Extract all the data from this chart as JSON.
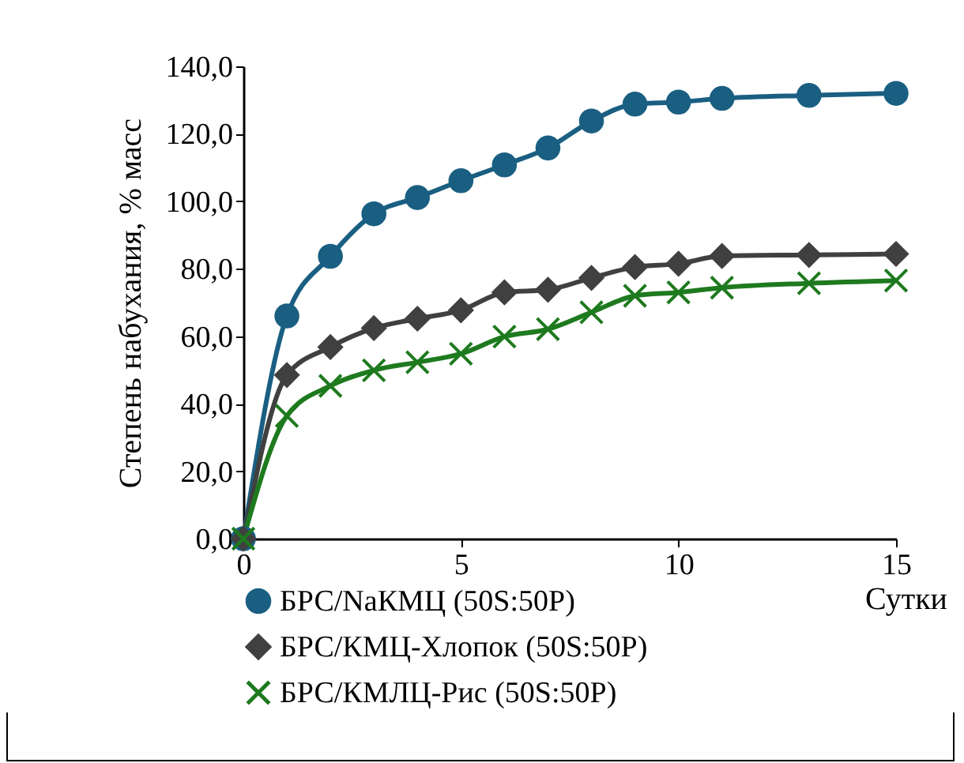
{
  "chart_data": {
    "type": "line",
    "xlabel": "Сутки",
    "ylabel": "Степень набухания, % масс",
    "x": [
      0,
      1,
      2,
      3,
      4,
      5,
      6,
      7,
      8,
      9,
      10,
      11,
      13,
      15
    ],
    "series": [
      {
        "name": "БРС/NaКМЦ (50S:50P)",
        "color": "#1a5f82",
        "marker": "circle",
        "values": [
          0,
          66.0,
          83.7,
          96.3,
          101.1,
          106.1,
          110.8,
          115.8,
          123.8,
          128.8,
          129.4,
          130.5,
          131.4,
          132.0
        ]
      },
      {
        "name": "БРС/КМЦ-Хлопок (50S:50P)",
        "color": "#404040",
        "marker": "diamond",
        "values": [
          0,
          48.5,
          56.8,
          62.4,
          65.2,
          67.7,
          73.0,
          73.8,
          77.3,
          80.5,
          81.5,
          83.8,
          84.1,
          84.4
        ]
      },
      {
        "name": "БРС/КМЛЦ-Рис (50S:50P)",
        "color": "#1e7a1e",
        "marker": "cross",
        "values": [
          0,
          36.4,
          45.3,
          49.9,
          52.3,
          54.8,
          59.9,
          62.1,
          67.1,
          72.0,
          73.0,
          74.4,
          75.7,
          76.5
        ]
      }
    ],
    "xlim": [
      0,
      15
    ],
    "xticks": [
      0,
      5,
      10,
      15
    ],
    "ylim": [
      0,
      140
    ],
    "yticks": [
      {
        "value": 0,
        "label": "0,0"
      },
      {
        "value": 20,
        "label": "20,0"
      },
      {
        "value": 40,
        "label": "40,0"
      },
      {
        "value": 60,
        "label": "60,0"
      },
      {
        "value": 80,
        "label": "80,0"
      },
      {
        "value": 100,
        "label": "100,0"
      },
      {
        "value": 120,
        "label": "120,0"
      },
      {
        "value": 140,
        "label": "140,0"
      }
    ],
    "grid": false,
    "legend": "bottom left",
    "line_style": "solid"
  }
}
